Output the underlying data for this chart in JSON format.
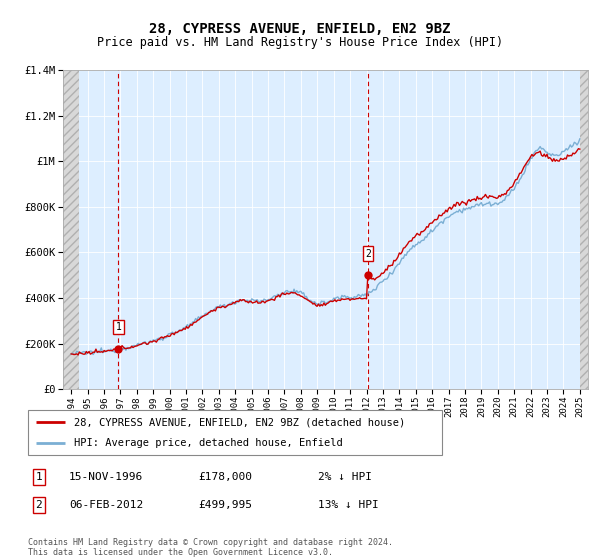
{
  "title": "28, CYPRESS AVENUE, ENFIELD, EN2 9BZ",
  "subtitle": "Price paid vs. HM Land Registry's House Price Index (HPI)",
  "ylim": [
    0,
    1400000
  ],
  "yticks": [
    0,
    200000,
    400000,
    600000,
    800000,
    1000000,
    1200000,
    1400000
  ],
  "ytick_labels": [
    "£0",
    "£200K",
    "£400K",
    "£600K",
    "£800K",
    "£1M",
    "£1.2M",
    "£1.4M"
  ],
  "sale1_date_x": 1996.875,
  "sale1_price": 178000,
  "sale2_date_x": 2012.083,
  "sale2_price": 499995,
  "hpi_color": "#7bafd4",
  "price_color": "#cc0000",
  "marker_color": "#cc0000",
  "vline_color": "#cc0000",
  "background_plot": "#ddeeff",
  "legend_label1": "28, CYPRESS AVENUE, ENFIELD, EN2 9BZ (detached house)",
  "legend_label2": "HPI: Average price, detached house, Enfield",
  "table_row1": [
    "1",
    "15-NOV-1996",
    "£178,000",
    "2% ↓ HPI"
  ],
  "table_row2": [
    "2",
    "06-FEB-2012",
    "£499,995",
    "13% ↓ HPI"
  ],
  "footer": "Contains HM Land Registry data © Crown copyright and database right 2024.\nThis data is licensed under the Open Government Licence v3.0.",
  "xlim_start": 1993.5,
  "xlim_end": 2025.5,
  "hatch_left_end": 1994.5,
  "hatch_right_start": 2025.0,
  "hpi_anchors": [
    [
      1994.0,
      155000
    ],
    [
      1994.5,
      157000
    ],
    [
      1995.0,
      160000
    ],
    [
      1995.5,
      163000
    ],
    [
      1996.0,
      166000
    ],
    [
      1996.5,
      170000
    ],
    [
      1997.0,
      178000
    ],
    [
      1997.5,
      185000
    ],
    [
      1998.0,
      193000
    ],
    [
      1998.5,
      202000
    ],
    [
      1999.0,
      212000
    ],
    [
      1999.5,
      223000
    ],
    [
      2000.0,
      240000
    ],
    [
      2000.5,
      255000
    ],
    [
      2001.0,
      270000
    ],
    [
      2001.5,
      295000
    ],
    [
      2002.0,
      320000
    ],
    [
      2002.5,
      345000
    ],
    [
      2003.0,
      360000
    ],
    [
      2003.5,
      370000
    ],
    [
      2004.0,
      385000
    ],
    [
      2004.5,
      392000
    ],
    [
      2005.0,
      388000
    ],
    [
      2005.5,
      385000
    ],
    [
      2006.0,
      392000
    ],
    [
      2006.5,
      410000
    ],
    [
      2007.0,
      425000
    ],
    [
      2007.5,
      430000
    ],
    [
      2008.0,
      420000
    ],
    [
      2008.5,
      395000
    ],
    [
      2009.0,
      375000
    ],
    [
      2009.5,
      380000
    ],
    [
      2010.0,
      395000
    ],
    [
      2010.5,
      405000
    ],
    [
      2011.0,
      405000
    ],
    [
      2011.5,
      408000
    ],
    [
      2012.0,
      412000
    ],
    [
      2012.5,
      440000
    ],
    [
      2013.0,
      475000
    ],
    [
      2013.5,
      510000
    ],
    [
      2014.0,
      555000
    ],
    [
      2014.5,
      600000
    ],
    [
      2015.0,
      635000
    ],
    [
      2015.5,
      660000
    ],
    [
      2016.0,
      695000
    ],
    [
      2016.5,
      730000
    ],
    [
      2017.0,
      760000
    ],
    [
      2017.5,
      780000
    ],
    [
      2018.0,
      790000
    ],
    [
      2018.5,
      800000
    ],
    [
      2019.0,
      810000
    ],
    [
      2019.5,
      815000
    ],
    [
      2020.0,
      810000
    ],
    [
      2020.5,
      835000
    ],
    [
      2021.0,
      880000
    ],
    [
      2021.5,
      940000
    ],
    [
      2022.0,
      1010000
    ],
    [
      2022.5,
      1060000
    ],
    [
      2023.0,
      1040000
    ],
    [
      2023.5,
      1020000
    ],
    [
      2024.0,
      1040000
    ],
    [
      2024.5,
      1070000
    ],
    [
      2025.0,
      1090000
    ]
  ],
  "price_anchors_seg1": [
    [
      1994.0,
      153000
    ],
    [
      1994.5,
      155500
    ],
    [
      1995.0,
      158000
    ],
    [
      1995.5,
      162000
    ],
    [
      1996.0,
      165000
    ],
    [
      1996.5,
      169000
    ],
    [
      1996.875,
      178000
    ],
    [
      1997.0,
      179000
    ],
    [
      1997.5,
      184000
    ],
    [
      1998.0,
      192000
    ],
    [
      1998.5,
      200000
    ],
    [
      1999.0,
      210000
    ],
    [
      1999.5,
      221000
    ],
    [
      2000.0,
      237000
    ],
    [
      2000.5,
      253000
    ],
    [
      2001.0,
      268000
    ],
    [
      2001.5,
      292000
    ],
    [
      2002.0,
      316000
    ],
    [
      2002.5,
      342000
    ],
    [
      2003.0,
      356000
    ],
    [
      2003.5,
      367000
    ],
    [
      2004.0,
      381000
    ],
    [
      2004.5,
      388000
    ],
    [
      2005.0,
      383000
    ],
    [
      2005.5,
      380000
    ],
    [
      2006.0,
      386000
    ],
    [
      2006.5,
      404000
    ],
    [
      2007.0,
      418000
    ],
    [
      2007.5,
      423000
    ],
    [
      2008.0,
      412000
    ],
    [
      2008.5,
      386000
    ],
    [
      2009.0,
      366000
    ],
    [
      2009.5,
      371000
    ],
    [
      2010.0,
      385000
    ],
    [
      2010.5,
      396000
    ],
    [
      2011.0,
      395000
    ],
    [
      2011.5,
      397000
    ],
    [
      2012.0,
      400000
    ],
    [
      2012.083,
      499995
    ]
  ],
  "price_anchors_seg2": [
    [
      2012.083,
      499995
    ],
    [
      2012.5,
      480000
    ],
    [
      2013.0,
      510000
    ],
    [
      2013.5,
      545000
    ],
    [
      2014.0,
      590000
    ],
    [
      2014.5,
      640000
    ],
    [
      2015.0,
      670000
    ],
    [
      2015.5,
      695000
    ],
    [
      2016.0,
      730000
    ],
    [
      2016.5,
      765000
    ],
    [
      2017.0,
      790000
    ],
    [
      2017.5,
      810000
    ],
    [
      2018.0,
      820000
    ],
    [
      2018.5,
      830000
    ],
    [
      2019.0,
      840000
    ],
    [
      2019.5,
      848000
    ],
    [
      2020.0,
      840000
    ],
    [
      2020.5,
      860000
    ],
    [
      2021.0,
      905000
    ],
    [
      2021.5,
      960000
    ],
    [
      2022.0,
      1020000
    ],
    [
      2022.5,
      1040000
    ],
    [
      2023.0,
      1020000
    ],
    [
      2023.5,
      1000000
    ],
    [
      2024.0,
      1010000
    ],
    [
      2024.5,
      1030000
    ],
    [
      2025.0,
      1050000
    ]
  ]
}
